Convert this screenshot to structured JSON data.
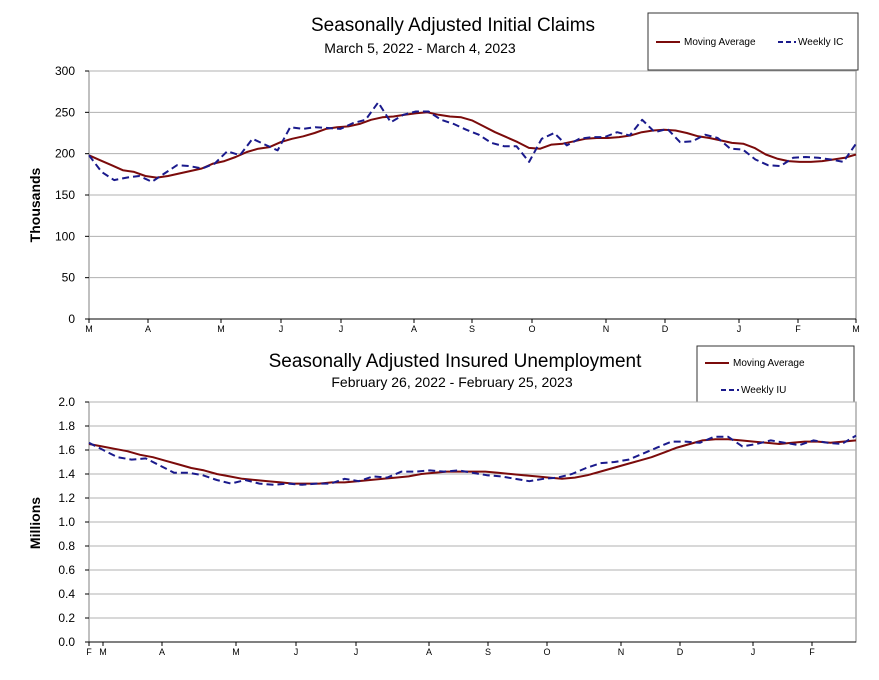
{
  "chart_data": [
    {
      "type": "line",
      "title": "Seasonally Adjusted Initial Claims",
      "subtitle": "March 5, 2022 - March 4, 2023",
      "ylabel": "Thousands",
      "xlabel": "",
      "ylim": [
        0,
        300
      ],
      "yticks": [
        0,
        50,
        100,
        150,
        200,
        250,
        300
      ],
      "ytick_decimals": 0,
      "month_labels": [
        "M",
        "A",
        "M",
        "J",
        "J",
        "A",
        "S",
        "O",
        "N",
        "D",
        "J",
        "F",
        "M"
      ],
      "grid": true,
      "legend_position": "top-right",
      "series": [
        {
          "name": "Moving Average",
          "style": "solid",
          "color": "#7b0b0b",
          "values": [
            198,
            192,
            186,
            180,
            178,
            173,
            171,
            173,
            176,
            179,
            182,
            188,
            191,
            196,
            202,
            206,
            208,
            214,
            218,
            221,
            225,
            230,
            232,
            233,
            236,
            241,
            244,
            245,
            247,
            249,
            250,
            247,
            245,
            244,
            240,
            233,
            226,
            220,
            214,
            207,
            206,
            211,
            212,
            215,
            218,
            219,
            219,
            220,
            222,
            226,
            228,
            229,
            228,
            225,
            221,
            219,
            216,
            213,
            212,
            207,
            199,
            194,
            191,
            190,
            190,
            191,
            193,
            195,
            199
          ]
        },
        {
          "name": "Weekly IC",
          "style": "dashed",
          "color": "#1a1a8c",
          "values": [
            198,
            178,
            168,
            171,
            173,
            166,
            176,
            186,
            185,
            182,
            188,
            203,
            198,
            218,
            211,
            204,
            232,
            230,
            232,
            231,
            230,
            237,
            241,
            262,
            238,
            247,
            251,
            251,
            241,
            236,
            229,
            223,
            213,
            209,
            209,
            190,
            218,
            225,
            210,
            218,
            220,
            220,
            226,
            222,
            241,
            226,
            230,
            214,
            215,
            223,
            219,
            206,
            205,
            193,
            186,
            185,
            195,
            196,
            195,
            193,
            190,
            212
          ]
        }
      ]
    },
    {
      "type": "line",
      "title": "Seasonally Adjusted Insured Unemployment",
      "subtitle": "February 26, 2022 - February 25, 2023",
      "ylabel": "Millions",
      "xlabel": "",
      "ylim": [
        0,
        2.0
      ],
      "yticks": [
        0.0,
        0.2,
        0.4,
        0.6,
        0.8,
        1.0,
        1.2,
        1.4,
        1.6,
        1.8,
        2.0
      ],
      "ytick_decimals": 1,
      "month_labels": [
        "F",
        "M",
        "A",
        "M",
        "J",
        "J",
        "A",
        "S",
        "O",
        "N",
        "D",
        "J",
        "F"
      ],
      "grid": true,
      "legend_position": "top-right",
      "series": [
        {
          "name": "Moving Average",
          "style": "solid",
          "color": "#7b0b0b",
          "values": [
            1.65,
            1.63,
            1.61,
            1.59,
            1.56,
            1.54,
            1.51,
            1.48,
            1.45,
            1.43,
            1.4,
            1.38,
            1.36,
            1.35,
            1.34,
            1.33,
            1.32,
            1.32,
            1.32,
            1.33,
            1.33,
            1.34,
            1.35,
            1.36,
            1.37,
            1.38,
            1.4,
            1.41,
            1.42,
            1.42,
            1.42,
            1.42,
            1.41,
            1.4,
            1.39,
            1.38,
            1.37,
            1.36,
            1.37,
            1.39,
            1.42,
            1.45,
            1.48,
            1.51,
            1.54,
            1.58,
            1.62,
            1.65,
            1.68,
            1.69,
            1.69,
            1.68,
            1.67,
            1.66,
            1.65,
            1.66,
            1.67,
            1.67,
            1.66,
            1.67,
            1.68
          ]
        },
        {
          "name": "Weekly IU",
          "style": "dashed",
          "color": "#1a1a8c",
          "values": [
            1.66,
            1.6,
            1.54,
            1.52,
            1.53,
            1.47,
            1.41,
            1.41,
            1.39,
            1.35,
            1.32,
            1.35,
            1.32,
            1.31,
            1.32,
            1.31,
            1.32,
            1.32,
            1.36,
            1.34,
            1.38,
            1.37,
            1.42,
            1.42,
            1.43,
            1.42,
            1.43,
            1.41,
            1.39,
            1.38,
            1.36,
            1.34,
            1.36,
            1.37,
            1.4,
            1.45,
            1.49,
            1.5,
            1.52,
            1.57,
            1.62,
            1.67,
            1.67,
            1.66,
            1.71,
            1.71,
            1.63,
            1.65,
            1.68,
            1.66,
            1.64,
            1.68,
            1.66,
            1.65,
            1.72
          ]
        }
      ]
    }
  ],
  "charts": [
    {
      "title": "Seasonally Adjusted Initial Claims",
      "subtitle": "March 5, 2022 - March 4, 2023",
      "ylabel": "Thousands",
      "legend": {
        "moving_average": "Moving Average",
        "weekly": "Weekly IC"
      }
    },
    {
      "title": "Seasonally Adjusted Insured Unemployment",
      "subtitle": "February 26, 2022 - February 25, 2023",
      "ylabel": "Millions",
      "legend": {
        "moving_average": "Moving Average",
        "weekly": "Weekly IU"
      }
    }
  ]
}
